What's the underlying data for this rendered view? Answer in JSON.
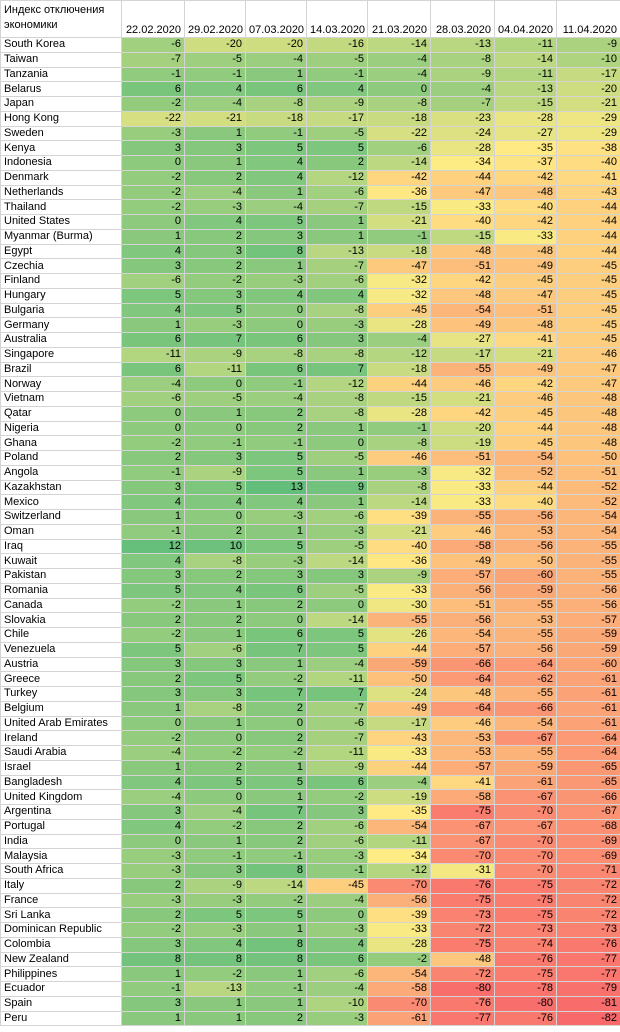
{
  "sheet": {
    "title": "Индекс отключения экономики",
    "dates": [
      "22.02.2020",
      "29.02.2020",
      "07.03.2020",
      "14.03.2020",
      "21.03.2020",
      "28.03.2020",
      "04.04.2020",
      "11.04.2020"
    ],
    "rows": [
      {
        "country": "South Korea",
        "values": [
          -6,
          -20,
          -20,
          -16,
          -14,
          -13,
          -11,
          -9
        ]
      },
      {
        "country": "Taiwan",
        "values": [
          -7,
          -5,
          -4,
          -5,
          -4,
          -8,
          -14,
          -10
        ]
      },
      {
        "country": "Tanzania",
        "values": [
          -1,
          -1,
          1,
          -1,
          -4,
          -9,
          -11,
          -17
        ]
      },
      {
        "country": "Belarus",
        "values": [
          6,
          4,
          6,
          4,
          0,
          -4,
          -13,
          -20
        ]
      },
      {
        "country": "Japan",
        "values": [
          -2,
          -4,
          -8,
          -9,
          -8,
          -7,
          -15,
          -21
        ]
      },
      {
        "country": "Hong Kong",
        "values": [
          -22,
          -21,
          -18,
          -17,
          -18,
          -23,
          -28,
          -29
        ]
      },
      {
        "country": "Sweden",
        "values": [
          -3,
          1,
          -1,
          -5,
          -22,
          -24,
          -27,
          -29
        ]
      },
      {
        "country": "Kenya",
        "values": [
          3,
          3,
          5,
          5,
          -6,
          -28,
          -35,
          -38
        ]
      },
      {
        "country": "Indonesia",
        "values": [
          0,
          1,
          4,
          2,
          -14,
          -34,
          -37,
          -40
        ]
      },
      {
        "country": "Denmark",
        "values": [
          -2,
          2,
          4,
          -12,
          -42,
          -44,
          -42,
          -41
        ]
      },
      {
        "country": "Netherlands",
        "values": [
          -2,
          -4,
          1,
          -6,
          -36,
          -47,
          -48,
          -43
        ]
      },
      {
        "country": "Thailand",
        "values": [
          -2,
          -3,
          -4,
          -7,
          -15,
          -33,
          -40,
          -44
        ]
      },
      {
        "country": "United States",
        "values": [
          0,
          4,
          5,
          1,
          -21,
          -40,
          -42,
          -44
        ]
      },
      {
        "country": "Myanmar (Burma)",
        "values": [
          1,
          2,
          3,
          1,
          -1,
          -15,
          -33,
          -44
        ]
      },
      {
        "country": "Egypt",
        "values": [
          4,
          3,
          8,
          -13,
          -18,
          -48,
          -48,
          -44
        ]
      },
      {
        "country": "Czechia",
        "values": [
          3,
          2,
          1,
          -7,
          -47,
          -51,
          -49,
          -45
        ]
      },
      {
        "country": "Finland",
        "values": [
          -6,
          -2,
          -3,
          -6,
          -32,
          -42,
          -45,
          -45
        ]
      },
      {
        "country": "Hungary",
        "values": [
          5,
          3,
          4,
          4,
          -32,
          -48,
          -47,
          -45
        ]
      },
      {
        "country": "Bulgaria",
        "values": [
          4,
          5,
          0,
          -8,
          -45,
          -54,
          -51,
          -45
        ]
      },
      {
        "country": "Germany",
        "values": [
          1,
          -3,
          0,
          -3,
          -28,
          -49,
          -48,
          -45
        ]
      },
      {
        "country": "Australia",
        "values": [
          6,
          7,
          6,
          3,
          -4,
          -27,
          -41,
          -45
        ]
      },
      {
        "country": "Singapore",
        "values": [
          -11,
          -9,
          -8,
          -8,
          -12,
          -17,
          -21,
          -46
        ]
      },
      {
        "country": "Brazil",
        "values": [
          6,
          -11,
          6,
          7,
          -18,
          -55,
          -49,
          -47
        ]
      },
      {
        "country": "Norway",
        "values": [
          -4,
          0,
          -1,
          -12,
          -44,
          -46,
          -42,
          -47
        ]
      },
      {
        "country": "Vietnam",
        "values": [
          -6,
          -5,
          -4,
          -8,
          -15,
          -21,
          -46,
          -48
        ]
      },
      {
        "country": "Qatar",
        "values": [
          0,
          1,
          2,
          -8,
          -28,
          -42,
          -45,
          -48
        ]
      },
      {
        "country": "Nigeria",
        "values": [
          0,
          0,
          2,
          1,
          -1,
          -20,
          -44,
          -48
        ]
      },
      {
        "country": "Ghana",
        "values": [
          -2,
          -1,
          -1,
          0,
          -8,
          -19,
          -45,
          -48
        ]
      },
      {
        "country": "Poland",
        "values": [
          2,
          3,
          5,
          -5,
          -46,
          -51,
          -54,
          -50
        ]
      },
      {
        "country": "Angola",
        "values": [
          -1,
          -9,
          5,
          1,
          -3,
          -32,
          -52,
          -51
        ]
      },
      {
        "country": "Kazakhstan",
        "values": [
          3,
          5,
          13,
          9,
          -8,
          -33,
          -44,
          -52
        ]
      },
      {
        "country": "Mexico",
        "values": [
          4,
          4,
          4,
          1,
          -14,
          -33,
          -40,
          -52
        ]
      },
      {
        "country": "Switzerland",
        "values": [
          1,
          0,
          -3,
          -6,
          -39,
          -55,
          -56,
          -54
        ]
      },
      {
        "country": "Oman",
        "values": [
          -1,
          2,
          1,
          -3,
          -21,
          -46,
          -53,
          -54
        ]
      },
      {
        "country": "Iraq",
        "values": [
          12,
          10,
          5,
          -5,
          -40,
          -58,
          -56,
          -55
        ]
      },
      {
        "country": "Kuwait",
        "values": [
          4,
          -8,
          -3,
          -14,
          -36,
          -49,
          -50,
          -55
        ]
      },
      {
        "country": "Pakistan",
        "values": [
          3,
          2,
          3,
          3,
          -9,
          -57,
          -60,
          -55
        ]
      },
      {
        "country": "Romania",
        "values": [
          5,
          4,
          6,
          -5,
          -33,
          -56,
          -59,
          -56
        ]
      },
      {
        "country": "Canada",
        "values": [
          -2,
          1,
          2,
          0,
          -30,
          -51,
          -55,
          -56
        ]
      },
      {
        "country": "Slovakia",
        "values": [
          2,
          2,
          0,
          -14,
          -55,
          -56,
          -53,
          -57
        ]
      },
      {
        "country": "Chile",
        "values": [
          -2,
          1,
          6,
          5,
          -26,
          -54,
          -55,
          -59
        ]
      },
      {
        "country": "Venezuela",
        "values": [
          5,
          -6,
          7,
          5,
          -44,
          -57,
          -56,
          -59
        ]
      },
      {
        "country": "Austria",
        "values": [
          3,
          3,
          1,
          -4,
          -59,
          -66,
          -64,
          -60
        ]
      },
      {
        "country": "Greece",
        "values": [
          2,
          5,
          -2,
          -11,
          -50,
          -64,
          -62,
          -61
        ]
      },
      {
        "country": "Turkey",
        "values": [
          3,
          3,
          7,
          7,
          -24,
          -48,
          -55,
          -61
        ]
      },
      {
        "country": "Belgium",
        "values": [
          1,
          -8,
          2,
          -7,
          -49,
          -64,
          -66,
          -61
        ]
      },
      {
        "country": "United Arab Emirates",
        "values": [
          0,
          1,
          0,
          -6,
          -17,
          -46,
          -54,
          -61
        ]
      },
      {
        "country": "Ireland",
        "values": [
          -2,
          0,
          2,
          -7,
          -43,
          -53,
          -67,
          -64
        ]
      },
      {
        "country": "Saudi Arabia",
        "values": [
          -4,
          -2,
          -2,
          -11,
          -33,
          -53,
          -55,
          -64
        ]
      },
      {
        "country": "Israel",
        "values": [
          1,
          2,
          1,
          -9,
          -44,
          -57,
          -59,
          -65
        ]
      },
      {
        "country": "Bangladesh",
        "values": [
          4,
          5,
          5,
          6,
          -4,
          -41,
          -61,
          -65
        ]
      },
      {
        "country": "United Kingdom",
        "values": [
          -4,
          0,
          1,
          -2,
          -19,
          -58,
          -67,
          -66
        ]
      },
      {
        "country": "Argentina",
        "values": [
          3,
          -4,
          7,
          3,
          -35,
          -75,
          -70,
          -67
        ]
      },
      {
        "country": "Portugal",
        "values": [
          4,
          -2,
          2,
          -6,
          -54,
          -67,
          -67,
          -68
        ]
      },
      {
        "country": "India",
        "values": [
          0,
          1,
          2,
          -6,
          -11,
          -67,
          -70,
          -69
        ]
      },
      {
        "country": "Malaysia",
        "values": [
          -3,
          -1,
          -1,
          -3,
          -34,
          -70,
          -70,
          -69
        ]
      },
      {
        "country": "South Africa",
        "values": [
          -3,
          3,
          8,
          -1,
          -12,
          -31,
          -70,
          -71
        ]
      },
      {
        "country": "Italy",
        "values": [
          2,
          -9,
          -14,
          -45,
          -70,
          -76,
          -75,
          -72
        ]
      },
      {
        "country": "France",
        "values": [
          -3,
          -3,
          -2,
          -4,
          -56,
          -75,
          -75,
          -72
        ]
      },
      {
        "country": "Sri Lanka",
        "values": [
          2,
          5,
          5,
          0,
          -39,
          -73,
          -75,
          -72
        ]
      },
      {
        "country": "Dominican Republic",
        "values": [
          -2,
          -3,
          1,
          -3,
          -33,
          -72,
          -73,
          -73
        ]
      },
      {
        "country": "Colombia",
        "values": [
          3,
          4,
          8,
          4,
          -28,
          -75,
          -74,
          -76
        ]
      },
      {
        "country": "New Zealand",
        "values": [
          8,
          8,
          8,
          6,
          -2,
          -48,
          -76,
          -77
        ]
      },
      {
        "country": "Philippines",
        "values": [
          1,
          -2,
          1,
          -6,
          -54,
          -72,
          -75,
          -77
        ]
      },
      {
        "country": "Ecuador",
        "values": [
          -1,
          -13,
          -1,
          -4,
          -58,
          -80,
          -78,
          -79
        ]
      },
      {
        "country": "Spain",
        "values": [
          3,
          1,
          1,
          -10,
          -70,
          -76,
          -80,
          -81
        ]
      },
      {
        "country": "Peru",
        "values": [
          1,
          1,
          2,
          -3,
          -61,
          -77,
          -76,
          -82
        ]
      }
    ]
  }
}
